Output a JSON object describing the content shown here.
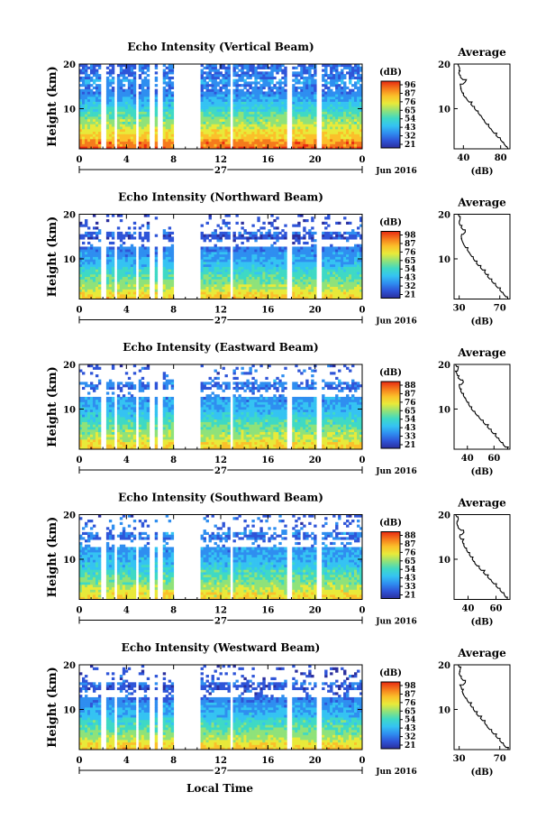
{
  "figure": {
    "xaxis_title": "Local Time",
    "date_label": "Jun 2016",
    "day_label": "27",
    "colorbar_title": "(dB)",
    "colormap": [
      "#2b2f9e",
      "#2f55d8",
      "#2f8ef0",
      "#35c3f2",
      "#3fd9c5",
      "#8fe27a",
      "#e8ea3a",
      "#fbc02a",
      "#f57a1c",
      "#e82a12"
    ]
  },
  "chart_data": [
    {
      "type": "heatmap",
      "title": "Echo Intensity (Vertical Beam)",
      "ylabel": "Height (km)",
      "x_ticks": [
        "0",
        "4",
        "8",
        "12",
        "16",
        "20",
        "0"
      ],
      "y_ticks": [
        "10",
        "20"
      ],
      "xlim": [
        0,
        24
      ],
      "ylim": [
        1,
        20
      ],
      "data_gaps_hours": [
        [
          1.9,
          2.3
        ],
        [
          2.9,
          3.3
        ],
        [
          4.8,
          5.1
        ],
        [
          6.0,
          6.3
        ],
        [
          6.6,
          7.0
        ],
        [
          8.0,
          10.3
        ],
        [
          12.7,
          13.0
        ],
        [
          17.7,
          18.0
        ],
        [
          20.2,
          20.5
        ]
      ],
      "colorbar_ticks": [
        "96",
        "87",
        "76",
        "65",
        "54",
        "43",
        "32",
        "21"
      ],
      "colorbar_range": [
        21,
        96
      ],
      "profile": {
        "title": "Average",
        "xlabel": "(dB)",
        "x_ticks": [
          "40",
          "80"
        ],
        "xlim": [
          30,
          90
        ],
        "y_ticks": [
          "10",
          "20"
        ],
        "ylim": [
          1,
          20
        ],
        "heights": [
          1,
          2,
          3,
          4,
          5,
          6,
          7,
          8,
          9,
          10,
          11,
          12,
          13,
          14,
          15,
          16,
          17,
          18,
          19,
          20
        ],
        "values": [
          88,
          84,
          80,
          75,
          71,
          67,
          63,
          60,
          56,
          52,
          48,
          44,
          40,
          38,
          37,
          42,
          37,
          35,
          36,
          34
        ]
      }
    },
    {
      "type": "heatmap",
      "title": "Echo Intensity (Northward Beam)",
      "ylabel": "Height (km)",
      "x_ticks": [
        "0",
        "4",
        "8",
        "12",
        "16",
        "20",
        "0"
      ],
      "y_ticks": [
        "10",
        "20"
      ],
      "xlim": [
        0,
        24
      ],
      "ylim": [
        1,
        20
      ],
      "data_gaps_hours": [
        [
          1.9,
          2.3
        ],
        [
          2.9,
          3.3
        ],
        [
          4.8,
          5.1
        ],
        [
          6.0,
          6.3
        ],
        [
          6.6,
          7.0
        ],
        [
          8.0,
          10.3
        ],
        [
          12.7,
          13.0
        ],
        [
          17.7,
          18.0
        ],
        [
          20.2,
          20.5
        ]
      ],
      "colorbar_ticks": [
        "98",
        "87",
        "76",
        "65",
        "54",
        "43",
        "32",
        "21"
      ],
      "colorbar_range": [
        21,
        98
      ],
      "profile": {
        "title": "Average",
        "xlabel": "(dB)",
        "x_ticks": [
          "30",
          "70"
        ],
        "xlim": [
          25,
          80
        ],
        "y_ticks": [
          "10",
          "20"
        ],
        "ylim": [
          1,
          20
        ],
        "heights": [
          1,
          2,
          3,
          4,
          5,
          6,
          7,
          8,
          9,
          10,
          11,
          12,
          13,
          14,
          15,
          16,
          17,
          18,
          19,
          20
        ],
        "values": [
          78,
          74,
          70,
          66,
          62,
          58,
          55,
          51,
          47,
          44,
          41,
          38,
          35,
          33,
          32,
          36,
          32,
          30,
          31,
          29
        ]
      }
    },
    {
      "type": "heatmap",
      "title": "Echo Intensity (Eastward Beam)",
      "ylabel": "Height (km)",
      "x_ticks": [
        "0",
        "4",
        "8",
        "12",
        "16",
        "20",
        "0"
      ],
      "y_ticks": [
        "10",
        "20"
      ],
      "xlim": [
        0,
        24
      ],
      "ylim": [
        1,
        20
      ],
      "data_gaps_hours": [
        [
          1.9,
          2.3
        ],
        [
          2.9,
          3.3
        ],
        [
          4.8,
          5.1
        ],
        [
          6.0,
          6.3
        ],
        [
          6.6,
          7.0
        ],
        [
          8.0,
          10.3
        ],
        [
          12.7,
          13.0
        ],
        [
          17.7,
          18.0
        ],
        [
          20.2,
          20.5
        ]
      ],
      "colorbar_ticks": [
        "88",
        "87",
        "76",
        "65",
        "54",
        "43",
        "33",
        "21"
      ],
      "colorbar_range": [
        21,
        88
      ],
      "profile": {
        "title": "Average",
        "xlabel": "(dB)",
        "x_ticks": [
          "40",
          "60"
        ],
        "xlim": [
          30,
          72
        ],
        "y_ticks": [
          "10",
          "20"
        ],
        "ylim": [
          1,
          20
        ],
        "heights": [
          1,
          2,
          3,
          4,
          5,
          6,
          7,
          8,
          9,
          10,
          11,
          12,
          13,
          14,
          15,
          16,
          17,
          18,
          19,
          20
        ],
        "values": [
          70,
          67,
          64,
          61,
          58,
          55,
          52,
          49,
          46,
          43,
          41,
          39,
          37,
          35,
          34,
          37,
          33,
          32,
          33,
          31
        ]
      }
    },
    {
      "type": "heatmap",
      "title": "Echo Intensity (Southward Beam)",
      "ylabel": "Height (km)",
      "x_ticks": [
        "0",
        "4",
        "8",
        "12",
        "16",
        "20",
        "0"
      ],
      "y_ticks": [
        "10",
        "20"
      ],
      "xlim": [
        0,
        24
      ],
      "ylim": [
        1,
        20
      ],
      "data_gaps_hours": [
        [
          1.9,
          2.3
        ],
        [
          2.9,
          3.3
        ],
        [
          4.8,
          5.1
        ],
        [
          6.0,
          6.3
        ],
        [
          6.6,
          7.0
        ],
        [
          8.0,
          10.3
        ],
        [
          12.7,
          13.0
        ],
        [
          17.7,
          18.0
        ],
        [
          20.2,
          20.5
        ]
      ],
      "colorbar_ticks": [
        "88",
        "87",
        "76",
        "65",
        "54",
        "43",
        "33",
        "21"
      ],
      "colorbar_range": [
        21,
        88
      ],
      "profile": {
        "title": "Average",
        "xlabel": "(dB)",
        "x_ticks": [
          "40",
          "60"
        ],
        "xlim": [
          30,
          70
        ],
        "y_ticks": [
          "10",
          "20"
        ],
        "ylim": [
          1,
          20
        ],
        "heights": [
          1,
          2,
          3,
          4,
          5,
          6,
          7,
          8,
          9,
          10,
          11,
          12,
          13,
          14,
          15,
          16,
          17,
          18,
          19,
          20
        ],
        "values": [
          68,
          66,
          63,
          60,
          57,
          54,
          51,
          48,
          45,
          43,
          41,
          39,
          37,
          36,
          34,
          37,
          33,
          32,
          33,
          31
        ]
      }
    },
    {
      "type": "heatmap",
      "title": "Echo Intensity (Westward Beam)",
      "ylabel": "Height (km)",
      "x_ticks": [
        "0",
        "4",
        "8",
        "12",
        "16",
        "20",
        "0"
      ],
      "y_ticks": [
        "10",
        "20"
      ],
      "xlim": [
        0,
        24
      ],
      "ylim": [
        1,
        20
      ],
      "data_gaps_hours": [
        [
          1.9,
          2.3
        ],
        [
          2.9,
          3.3
        ],
        [
          4.8,
          5.1
        ],
        [
          6.0,
          6.3
        ],
        [
          6.6,
          7.0
        ],
        [
          8.0,
          10.3
        ],
        [
          12.7,
          13.0
        ],
        [
          17.7,
          18.0
        ],
        [
          20.2,
          20.5
        ]
      ],
      "colorbar_ticks": [
        "98",
        "87",
        "76",
        "65",
        "54",
        "43",
        "32",
        "21"
      ],
      "colorbar_range": [
        21,
        98
      ],
      "profile": {
        "title": "Average",
        "xlabel": "(dB)",
        "x_ticks": [
          "30",
          "70"
        ],
        "xlim": [
          25,
          80
        ],
        "y_ticks": [
          "10",
          "20"
        ],
        "ylim": [
          1,
          20
        ],
        "heights": [
          1,
          2,
          3,
          4,
          5,
          6,
          7,
          8,
          9,
          10,
          11,
          12,
          13,
          14,
          15,
          16,
          17,
          18,
          19,
          20
        ],
        "values": [
          78,
          74,
          70,
          66,
          62,
          58,
          55,
          51,
          47,
          44,
          41,
          38,
          35,
          33,
          32,
          36,
          32,
          30,
          31,
          29
        ]
      }
    }
  ]
}
